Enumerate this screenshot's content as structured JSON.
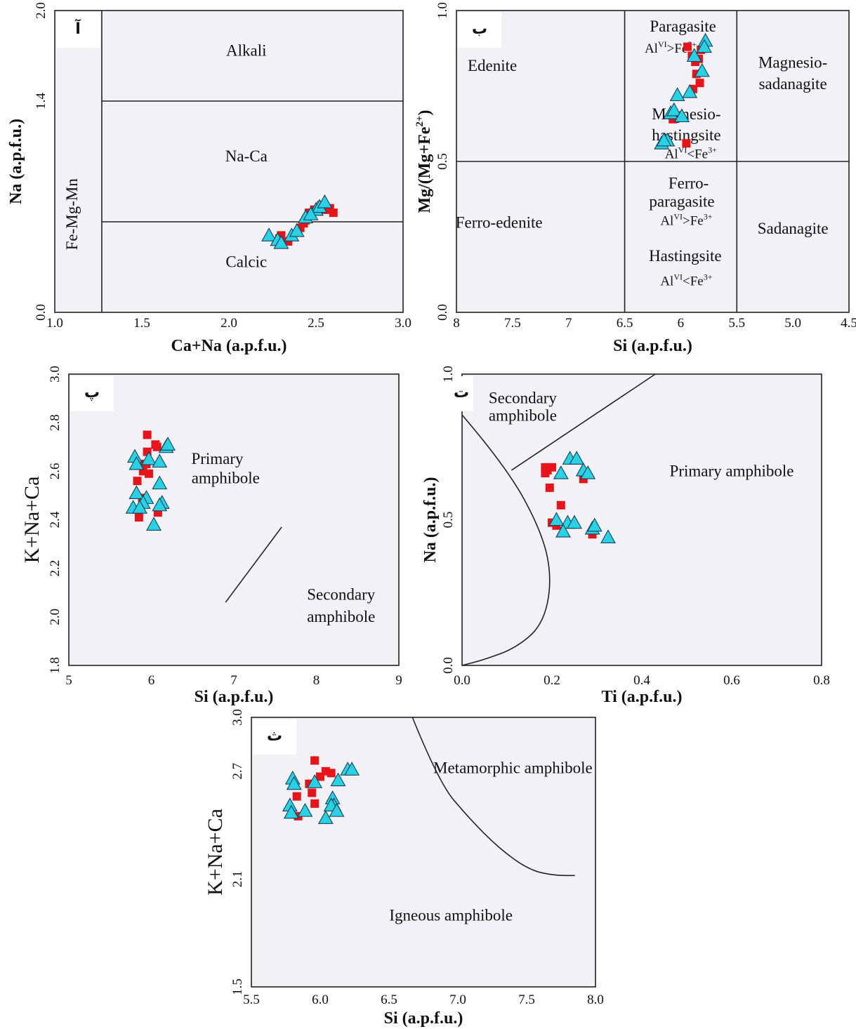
{
  "chart_data": [
    {
      "type": "scatter",
      "panel_label": "آ",
      "xlabel": "Ca+Na (a.p.f.u.)",
      "ylabel": "Na (a.p.f.u.)",
      "xlim": [
        1.0,
        3.0
      ],
      "ylim": [
        0.0,
        2.0
      ],
      "x_ticks": [
        "1.0",
        "1.5",
        "2.0",
        "2.5",
        "3.0"
      ],
      "y_ticks": [
        "0.0",
        "1.4",
        "2.0"
      ],
      "regions": [
        {
          "label": "Alkali",
          "x": 2.1,
          "y": 1.7
        },
        {
          "label": "Na-Ca",
          "x": 2.1,
          "y": 1.0
        },
        {
          "label": "Calcic",
          "x": 2.1,
          "y": 0.3
        },
        {
          "label": "Fe-Mg-Mn",
          "x": 1.13,
          "y": 0.65,
          "rotate": true
        }
      ],
      "boundaries": [
        {
          "points": [
            [
              1.27,
              0.0
            ],
            [
              1.27,
              2.0
            ]
          ]
        },
        {
          "points": [
            [
              1.27,
              1.4
            ],
            [
              3.0,
              1.4
            ]
          ]
        },
        {
          "points": [
            [
              1.27,
              0.6
            ],
            [
              3.0,
              0.6
            ]
          ]
        }
      ],
      "series": [
        {
          "marker": "square",
          "color": "#e8141b",
          "x": [
            2.29,
            2.34,
            2.41,
            2.43,
            2.44,
            2.46,
            2.49,
            2.53,
            2.56,
            2.58,
            2.6,
            2.3
          ],
          "y": [
            0.49,
            0.47,
            0.56,
            0.59,
            0.61,
            0.66,
            0.68,
            0.71,
            0.68,
            0.69,
            0.66,
            0.51
          ]
        },
        {
          "marker": "triangle",
          "color": "#28d2e4",
          "x": [
            2.23,
            2.28,
            2.3,
            2.36,
            2.39,
            2.44,
            2.5,
            2.52,
            2.55,
            2.47
          ],
          "y": [
            0.51,
            0.48,
            0.46,
            0.51,
            0.54,
            0.63,
            0.68,
            0.7,
            0.73,
            0.65
          ]
        }
      ]
    },
    {
      "type": "scatter",
      "panel_label": "ب",
      "xlabel": "Si (a.p.f.u.)",
      "ylabel": "Mg/(Mg+Fe2+)",
      "xlim": [
        8.0,
        4.5
      ],
      "ylim": [
        0.0,
        1.0
      ],
      "x_ticks": [
        "8",
        "7.5",
        "7",
        "6.5",
        "6",
        "5.5",
        "5.0",
        "4.5"
      ],
      "y_ticks": [
        "0.0",
        "0.5",
        "1.0"
      ],
      "regions": [
        {
          "label": "Edenite",
          "x": 7.68,
          "y": 0.8
        },
        {
          "label": "Ferro-edenite",
          "x": 7.62,
          "y": 0.28
        },
        {
          "label": "Paragasite",
          "x": 5.98,
          "y": 0.93
        },
        {
          "label": "Magnesio-",
          "x": 5.0,
          "y": 0.81
        },
        {
          "label": "sadanagite",
          "x": 5.0,
          "y": 0.74
        },
        {
          "label": "Magnesio-",
          "x": 5.95,
          "y": 0.64
        },
        {
          "label": "hastingsite",
          "x": 5.95,
          "y": 0.57
        },
        {
          "label": "Ferro-",
          "x": 5.93,
          "y": 0.41
        },
        {
          "label": "paragasite",
          "x": 5.99,
          "y": 0.35
        },
        {
          "label": "Hastingsite",
          "x": 5.96,
          "y": 0.17
        },
        {
          "label": "Sadanagite",
          "x": 5.0,
          "y": 0.26
        }
      ],
      "subscript_notes": [
        {
          "base": "Al",
          "sup1": "VI",
          "op": ">",
          "base2": "Fe",
          "sup2": "3+",
          "x": 6.09,
          "y": 0.86
        },
        {
          "base": "Al",
          "sup1": "VI",
          "op": "<",
          "base2": "Fe",
          "sup2": "3+",
          "x": 5.91,
          "y": 0.51
        },
        {
          "base": "Al",
          "sup1": "VI",
          "op": ">",
          "base2": "Fe",
          "sup2": "3+",
          "x": 5.95,
          "y": 0.29
        },
        {
          "base": "Al",
          "sup1": "VI",
          "op": "<",
          "base2": "Fe",
          "sup2": "3+",
          "x": 5.95,
          "y": 0.09
        }
      ],
      "ylabel_parts": {
        "main": "Mg/(Mg+Fe",
        "sup": "2+",
        "tail": ")"
      },
      "boundaries": [
        {
          "points": [
            [
              6.5,
              0.0
            ],
            [
              6.5,
              1.0
            ]
          ]
        },
        {
          "points": [
            [
              5.5,
              0.0
            ],
            [
              5.5,
              1.0
            ]
          ]
        },
        {
          "points": [
            [
              8.0,
              0.5
            ],
            [
              4.5,
              0.5
            ]
          ]
        }
      ],
      "series": [
        {
          "marker": "square",
          "color": "#e8141b",
          "x": [
            5.94,
            5.9,
            5.87,
            5.86,
            5.84,
            5.82,
            5.83,
            5.89,
            6.07,
            5.95
          ],
          "y": [
            0.88,
            0.85,
            0.83,
            0.79,
            0.84,
            0.87,
            0.76,
            0.74,
            0.64,
            0.56
          ]
        },
        {
          "marker": "triangle",
          "color": "#28d2e4",
          "x": [
            5.78,
            5.81,
            5.88,
            5.92,
            6.03,
            6.09,
            6.06,
            5.99,
            6.12,
            6.17,
            6.15,
            5.79
          ],
          "y": [
            0.9,
            0.8,
            0.85,
            0.73,
            0.72,
            0.66,
            0.67,
            0.65,
            0.57,
            0.56,
            0.57,
            0.88
          ]
        }
      ]
    },
    {
      "type": "scatter",
      "panel_label": "پ",
      "xlabel": "Si (a.p.f.u.)",
      "ylabel": "K+Na+Ca",
      "xlim": [
        5,
        9
      ],
      "ylim": [
        1.8,
        3.0
      ],
      "x_ticks": [
        "5",
        "6",
        "7",
        "8",
        "9"
      ],
      "y_ticks": [
        "1.8",
        "2.0",
        "2.2",
        "2.4",
        "2.6",
        "2.8",
        "3.0"
      ],
      "regions": [
        {
          "label": "Primary",
          "x": 6.8,
          "y": 2.63
        },
        {
          "label": "amphibole",
          "x": 6.9,
          "y": 2.55
        },
        {
          "label": "Secondary",
          "x": 8.3,
          "y": 2.07
        },
        {
          "label": "amphibole",
          "x": 8.3,
          "y": 1.98
        }
      ],
      "boundaries": [
        {
          "points": [
            [
              6.9,
              2.06
            ],
            [
              7.58,
              2.37
            ]
          ]
        }
      ],
      "series": [
        {
          "marker": "square",
          "color": "#e8141b",
          "x": [
            5.95,
            6.05,
            6.07,
            5.95,
            5.9,
            5.94,
            5.97,
            5.83,
            5.89,
            6.08,
            5.85,
            5.92
          ],
          "y": [
            2.75,
            2.71,
            2.7,
            2.68,
            2.6,
            2.63,
            2.59,
            2.56,
            2.49,
            2.43,
            2.41,
            2.63
          ]
        },
        {
          "marker": "triangle",
          "color": "#28d2e4",
          "x": [
            5.8,
            5.82,
            5.97,
            6.18,
            6.2,
            6.1,
            5.82,
            6.1,
            5.94,
            6.13,
            6.1,
            5.78,
            5.9,
            6.03,
            5.86
          ],
          "y": [
            2.66,
            2.63,
            2.65,
            2.7,
            2.71,
            2.64,
            2.51,
            2.55,
            2.49,
            2.47,
            2.46,
            2.45,
            2.47,
            2.38,
            2.45
          ]
        }
      ]
    },
    {
      "type": "scatter",
      "panel_label": "ت",
      "xlabel": "Ti (a.p.f.u.)",
      "ylabel": "Na (a.p.f.u.)",
      "xlim": [
        0.0,
        0.8
      ],
      "ylim": [
        0.0,
        1.0
      ],
      "x_ticks": [
        "0.0",
        "0.2",
        "0.4",
        "0.6",
        "0.8"
      ],
      "y_ticks": [
        "0.0",
        "0.5",
        "1.0"
      ],
      "regions": [
        {
          "label": "Secondary",
          "x": 0.135,
          "y": 0.9
        },
        {
          "label": "amphibole",
          "x": 0.135,
          "y": 0.84
        },
        {
          "label": "Primary amphibole",
          "x": 0.6,
          "y": 0.65
        }
      ],
      "boundaries": [
        {
          "curve": "parabola",
          "points": [
            [
              0.0,
              0.86
            ],
            [
              0.1,
              0.68
            ],
            [
              0.18,
              0.45
            ],
            [
              0.2,
              0.29
            ],
            [
              0.18,
              0.14
            ],
            [
              0.12,
              0.06
            ],
            [
              0.05,
              0.02
            ],
            [
              0.0,
              0.0
            ]
          ]
        },
        {
          "points": [
            [
              0.11,
              0.67
            ],
            [
              0.43,
              1.0
            ]
          ]
        }
      ],
      "series": [
        {
          "marker": "square",
          "color": "#e8141b",
          "x": [
            0.185,
            0.19,
            0.2,
            0.185,
            0.195,
            0.2,
            0.22,
            0.27,
            0.29,
            0.21
          ],
          "y": [
            0.68,
            0.67,
            0.68,
            0.66,
            0.61,
            0.49,
            0.55,
            0.64,
            0.45,
            0.48
          ]
        },
        {
          "marker": "triangle",
          "color": "#28d2e4",
          "x": [
            0.22,
            0.24,
            0.27,
            0.255,
            0.28,
            0.21,
            0.235,
            0.25,
            0.29,
            0.295,
            0.325,
            0.225
          ],
          "y": [
            0.66,
            0.71,
            0.67,
            0.71,
            0.66,
            0.5,
            0.49,
            0.49,
            0.47,
            0.48,
            0.44,
            0.46
          ]
        }
      ]
    },
    {
      "type": "scatter",
      "panel_label": "ث",
      "xlabel": "Si (a.p.f.u.)",
      "ylabel": "K+Na+Ca",
      "xlim": [
        5.5,
        8.0
      ],
      "ylim": [
        1.5,
        3.0
      ],
      "x_ticks": [
        "5.5",
        "6.0",
        "6.5",
        "7.0",
        "7.5",
        "8.0"
      ],
      "y_ticks": [
        "1.5",
        "2.1",
        "2.7",
        "3.0"
      ],
      "regions": [
        {
          "label": "Metamorphic amphibole",
          "x": 7.4,
          "y": 2.69
        },
        {
          "label": "Igneous amphibole",
          "x": 6.95,
          "y": 1.87
        }
      ],
      "boundaries": [
        {
          "curve": "arc",
          "points": [
            [
              6.67,
              3.0
            ],
            [
              6.86,
              2.64
            ],
            [
              7.08,
              2.44
            ],
            [
              7.3,
              2.27
            ],
            [
              7.52,
              2.15
            ],
            [
              7.7,
              2.12
            ],
            [
              7.85,
              2.12
            ]
          ]
        }
      ],
      "series": [
        {
          "marker": "square",
          "color": "#e8141b",
          "x": [
            5.96,
            6.04,
            6.08,
            6.0,
            5.92,
            5.94,
            5.83,
            5.96,
            5.84
          ],
          "y": [
            2.76,
            2.7,
            2.69,
            2.67,
            2.63,
            2.58,
            2.56,
            2.52,
            2.45
          ]
        },
        {
          "marker": "triangle",
          "color": "#28d2e4",
          "x": [
            5.8,
            5.81,
            5.96,
            6.13,
            6.2,
            6.23,
            6.09,
            6.1,
            5.78,
            5.89,
            6.08,
            6.12,
            6.04,
            5.79
          ],
          "y": [
            2.66,
            2.63,
            2.64,
            2.65,
            2.71,
            2.71,
            2.55,
            2.51,
            2.51,
            2.48,
            2.51,
            2.48,
            2.44,
            2.47
          ]
        }
      ]
    }
  ]
}
